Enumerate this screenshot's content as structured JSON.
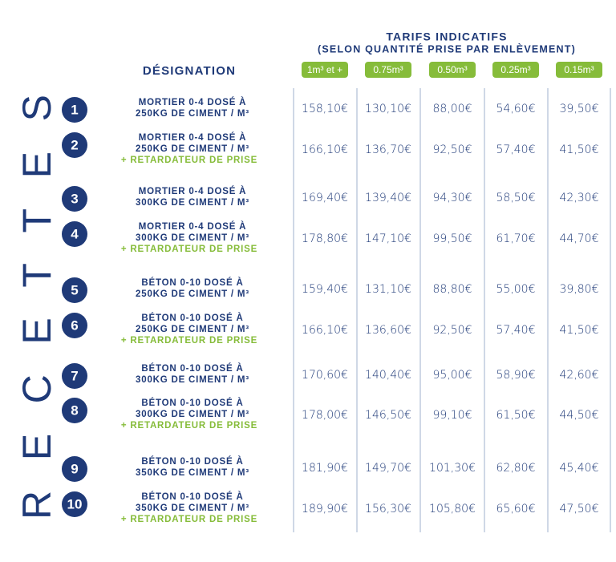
{
  "side_label": "RECETTES",
  "header": {
    "title": "TARIFS INDICATIFS",
    "subtitle": "(SELON QUANTITÉ PRISE PAR ENLÈVEMENT)",
    "designation": "DÉSIGNATION",
    "columns": [
      "1m³ et +",
      "0.75m³",
      "0.50m³",
      "0.25m³",
      "0.15m³"
    ]
  },
  "rows": [
    {
      "number": "1",
      "lines": [
        "MORTIER 0-4 DOSÉ À",
        "250KG DE CIMENT / M³"
      ],
      "prices": [
        "158,10€",
        "130,10€",
        "88,00€",
        "54,60€",
        "39,50€"
      ]
    },
    {
      "number": "2",
      "lines": [
        "MORTIER 0-4 DOSÉ À",
        "250KG DE CIMENT / M³"
      ],
      "additive": "+ RETARDATEUR DE PRISE",
      "prices": [
        "166,10€",
        "136,70€",
        "92,50€",
        "57,40€",
        "41,50€"
      ]
    },
    {
      "number": "3",
      "lines": [
        "MORTIER 0-4 DOSÉ À",
        "300KG DE CIMENT / M³"
      ],
      "prices": [
        "169,40€",
        "139,40€",
        "94,30€",
        "58,50€",
        "42,30€"
      ]
    },
    {
      "number": "4",
      "lines": [
        "MORTIER 0-4 DOSÉ À",
        "300KG DE CIMENT / M³"
      ],
      "additive": "+ RETARDATEUR DE PRISE",
      "prices": [
        "178,80€",
        "147,10€",
        "99,50€",
        "61,70€",
        "44,70€"
      ]
    },
    {
      "number": "5",
      "lines": [
        "BÉTON 0-10 DOSÉ À",
        "250KG DE CIMENT / M³"
      ],
      "prices": [
        "159,40€",
        "131,10€",
        "88,80€",
        "55,00€",
        "39,80€"
      ]
    },
    {
      "number": "6",
      "lines": [
        "BÉTON 0-10 DOSÉ À",
        "250KG DE CIMENT / M³"
      ],
      "additive": "+ RETARDATEUR DE PRISE",
      "prices": [
        "166,10€",
        "136,60€",
        "92,50€",
        "57,40€",
        "41,50€"
      ]
    },
    {
      "number": "7",
      "lines": [
        "BÉTON 0-10 DOSÉ À",
        "300KG DE CIMENT / M³"
      ],
      "prices": [
        "170,60€",
        "140,40€",
        "95,00€",
        "58,90€",
        "42,60€"
      ]
    },
    {
      "number": "8",
      "lines": [
        "BÉTON 0-10 DOSÉ À",
        "300KG DE CIMENT / M³"
      ],
      "additive": "+ RETARDATEUR DE PRISE",
      "prices": [
        "178,00€",
        "146,50€",
        "99,10€",
        "61,50€",
        "44,50€"
      ]
    },
    {
      "number": "9",
      "lines": [
        "BÉTON 0-10 DOSÉ À",
        "350KG DE CIMENT / M³"
      ],
      "prices": [
        "181,90€",
        "149,70€",
        "101,30€",
        "62,80€",
        "45,40€"
      ]
    },
    {
      "number": "10",
      "lines": [
        "BÉTON 0-10 DOSÉ À",
        "350KG DE CIMENT / M³"
      ],
      "additive": "+ RETARDATEUR DE PRISE",
      "prices": [
        "189,90€",
        "156,30€",
        "105,80€",
        "65,60€",
        "47,50€"
      ]
    }
  ]
}
